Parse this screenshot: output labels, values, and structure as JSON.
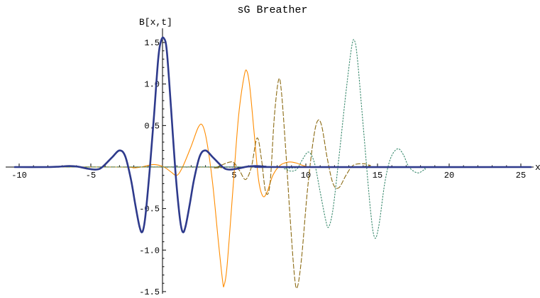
{
  "chart_data": {
    "type": "line",
    "title": "sG Breather",
    "ylabel": "B[x,t]",
    "xlabel": "x",
    "xlim": [
      -10.3,
      25.7
    ],
    "ylim": [
      -1.6,
      1.65
    ],
    "x_ticks": [
      -10,
      -5,
      5,
      10,
      15,
      20,
      25
    ],
    "x_tick_labels": [
      "-10",
      "-5",
      "5",
      "10",
      "15",
      "20",
      "25"
    ],
    "y_ticks": [
      -1.5,
      -1.0,
      -0.5,
      0.5,
      1.0,
      1.5
    ],
    "y_tick_labels": [
      "-1.5",
      "-1.0",
      "-0.5",
      "0.5",
      "1.0",
      "1.5"
    ],
    "grid": false,
    "legend": "none",
    "series": [
      {
        "color": "#2e3a8c",
        "style": "solid",
        "width": 2.6,
        "points": [
          [
            -10.3,
            0
          ],
          [
            -8,
            0
          ],
          [
            -7.2,
            0.005
          ],
          [
            -6.5,
            0.012
          ],
          [
            -5.9,
            0.005
          ],
          [
            -5.2,
            -0.02
          ],
          [
            -4.6,
            -0.03
          ],
          [
            -4.2,
            0
          ],
          [
            -3.5,
            0.12
          ],
          [
            -3.0,
            0.2
          ],
          [
            -2.6,
            0.13
          ],
          [
            -2.2,
            -0.15
          ],
          [
            -1.9,
            -0.45
          ],
          [
            -1.6,
            -0.72
          ],
          [
            -1.4,
            -0.78
          ],
          [
            -1.2,
            -0.6
          ],
          [
            -0.9,
            -0.05
          ],
          [
            -0.6,
            0.6
          ],
          [
            -0.3,
            1.3
          ],
          [
            -0.1,
            1.52
          ],
          [
            0.1,
            1.55
          ],
          [
            0.3,
            1.4
          ],
          [
            0.6,
            0.7
          ],
          [
            0.9,
            -0.05
          ],
          [
            1.2,
            -0.6
          ],
          [
            1.4,
            -0.78
          ],
          [
            1.6,
            -0.72
          ],
          [
            1.9,
            -0.45
          ],
          [
            2.2,
            -0.15
          ],
          [
            2.6,
            0.13
          ],
          [
            3.0,
            0.2
          ],
          [
            3.5,
            0.12
          ],
          [
            4.2,
            0
          ],
          [
            4.6,
            -0.03
          ],
          [
            5.2,
            -0.02
          ],
          [
            5.9,
            0.005
          ],
          [
            6.5,
            0.012
          ],
          [
            7.2,
            0.005
          ],
          [
            8,
            0
          ],
          [
            25.7,
            0
          ]
        ]
      },
      {
        "color": "#ff8c00",
        "style": "solid",
        "width": 1.1,
        "points": [
          [
            -10.3,
            0
          ],
          [
            -3,
            0
          ],
          [
            -2,
            -0.01
          ],
          [
            -1.5,
            0
          ],
          [
            -0.6,
            0.03
          ],
          [
            0.1,
            0
          ],
          [
            0.6,
            -0.06
          ],
          [
            1.0,
            -0.1
          ],
          [
            1.4,
            0
          ],
          [
            2.0,
            0.25
          ],
          [
            2.5,
            0.48
          ],
          [
            2.8,
            0.5
          ],
          [
            3.1,
            0.3
          ],
          [
            3.5,
            -0.2
          ],
          [
            3.9,
            -0.9
          ],
          [
            4.2,
            -1.38
          ],
          [
            4.3,
            -1.42
          ],
          [
            4.5,
            -1.2
          ],
          [
            4.9,
            -0.3
          ],
          [
            5.3,
            0.6
          ],
          [
            5.7,
            1.1
          ],
          [
            5.9,
            1.15
          ],
          [
            6.1,
            0.95
          ],
          [
            6.4,
            0.4
          ],
          [
            6.7,
            -0.15
          ],
          [
            7.0,
            -0.35
          ],
          [
            7.3,
            -0.3
          ],
          [
            7.7,
            -0.1
          ],
          [
            8.2,
            0.02
          ],
          [
            8.8,
            0.06
          ],
          [
            9.3,
            0.05
          ],
          [
            10,
            0.01
          ],
          [
            11,
            0
          ],
          [
            25.7,
            0
          ]
        ]
      },
      {
        "color": "#8b6a12",
        "style": "dashed",
        "width": 1.1,
        "points": [
          [
            -10.3,
            0
          ],
          [
            3,
            0
          ],
          [
            3.6,
            -0.01
          ],
          [
            4.2,
            0.03
          ],
          [
            4.7,
            0.06
          ],
          [
            5.0,
            0.05
          ],
          [
            5.4,
            -0.05
          ],
          [
            5.8,
            -0.15
          ],
          [
            6.2,
            0
          ],
          [
            6.6,
            0.35
          ],
          [
            6.9,
            0.1
          ],
          [
            7.2,
            -0.3
          ],
          [
            7.5,
            -0.2
          ],
          [
            7.8,
            0.6
          ],
          [
            8.1,
            1.05
          ],
          [
            8.3,
            0.9
          ],
          [
            8.6,
            0.2
          ],
          [
            8.9,
            -0.6
          ],
          [
            9.2,
            -1.3
          ],
          [
            9.4,
            -1.45
          ],
          [
            9.7,
            -1.1
          ],
          [
            10.1,
            -0.3
          ],
          [
            10.5,
            0.3
          ],
          [
            10.8,
            0.55
          ],
          [
            11.1,
            0.5
          ],
          [
            11.5,
            0.1
          ],
          [
            11.9,
            -0.2
          ],
          [
            12.3,
            -0.25
          ],
          [
            12.8,
            -0.1
          ],
          [
            13.3,
            0.02
          ],
          [
            14,
            0.04
          ],
          [
            14.5,
            0.02
          ],
          [
            15,
            0
          ],
          [
            25.7,
            0
          ]
        ]
      },
      {
        "color": "#3a8a6e",
        "style": "dotted",
        "width": 1.1,
        "points": [
          [
            -10.3,
            0
          ],
          [
            8,
            0
          ],
          [
            8.5,
            -0.02
          ],
          [
            9.0,
            -0.05
          ],
          [
            9.4,
            -0.02
          ],
          [
            9.8,
            0.1
          ],
          [
            10.2,
            0.18
          ],
          [
            10.6,
            0.05
          ],
          [
            11.0,
            -0.3
          ],
          [
            11.4,
            -0.65
          ],
          [
            11.6,
            -0.72
          ],
          [
            11.9,
            -0.5
          ],
          [
            12.3,
            0.1
          ],
          [
            12.8,
            0.9
          ],
          [
            13.2,
            1.45
          ],
          [
            13.4,
            1.52
          ],
          [
            13.6,
            1.3
          ],
          [
            14.0,
            0.5
          ],
          [
            14.5,
            -0.5
          ],
          [
            14.8,
            -0.85
          ],
          [
            15.1,
            -0.7
          ],
          [
            15.5,
            -0.2
          ],
          [
            15.9,
            0.1
          ],
          [
            16.4,
            0.22
          ],
          [
            16.8,
            0.15
          ],
          [
            17.2,
            0
          ],
          [
            17.8,
            -0.07
          ],
          [
            18.3,
            -0.03
          ],
          [
            19,
            0
          ],
          [
            25.7,
            0
          ]
        ]
      }
    ]
  }
}
